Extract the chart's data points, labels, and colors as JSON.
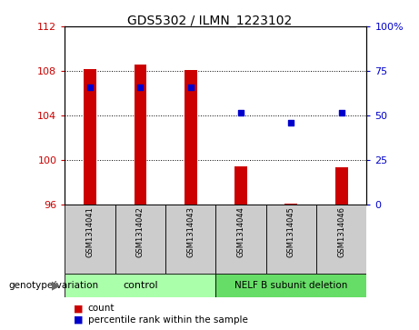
{
  "title": "GDS5302 / ILMN_1223102",
  "samples": [
    "GSM1314041",
    "GSM1314042",
    "GSM1314043",
    "GSM1314044",
    "GSM1314045",
    "GSM1314046"
  ],
  "count_values": [
    108.2,
    108.55,
    108.1,
    99.4,
    96.05,
    99.35
  ],
  "percentile_values": [
    66,
    66,
    66,
    51.5,
    46,
    51.5
  ],
  "ylim_left": [
    96,
    112
  ],
  "ylim_right": [
    0,
    100
  ],
  "yticks_left": [
    96,
    100,
    104,
    108,
    112
  ],
  "yticks_right": [
    0,
    25,
    50,
    75,
    100
  ],
  "ytick_labels_right": [
    "0",
    "25",
    "50",
    "75",
    "100%"
  ],
  "bar_color": "#cc0000",
  "dot_color": "#0000cc",
  "bar_bottom": 96,
  "bar_width": 0.25,
  "control_color": "#aaffaa",
  "deletion_color": "#66dd66",
  "sample_box_color": "#cccccc",
  "group_label": "genotype/variation",
  "legend_count_label": "count",
  "legend_pct_label": "percentile rank within the sample",
  "legend_count_color": "#cc0000",
  "legend_pct_color": "#0000cc",
  "dot_size": 20
}
